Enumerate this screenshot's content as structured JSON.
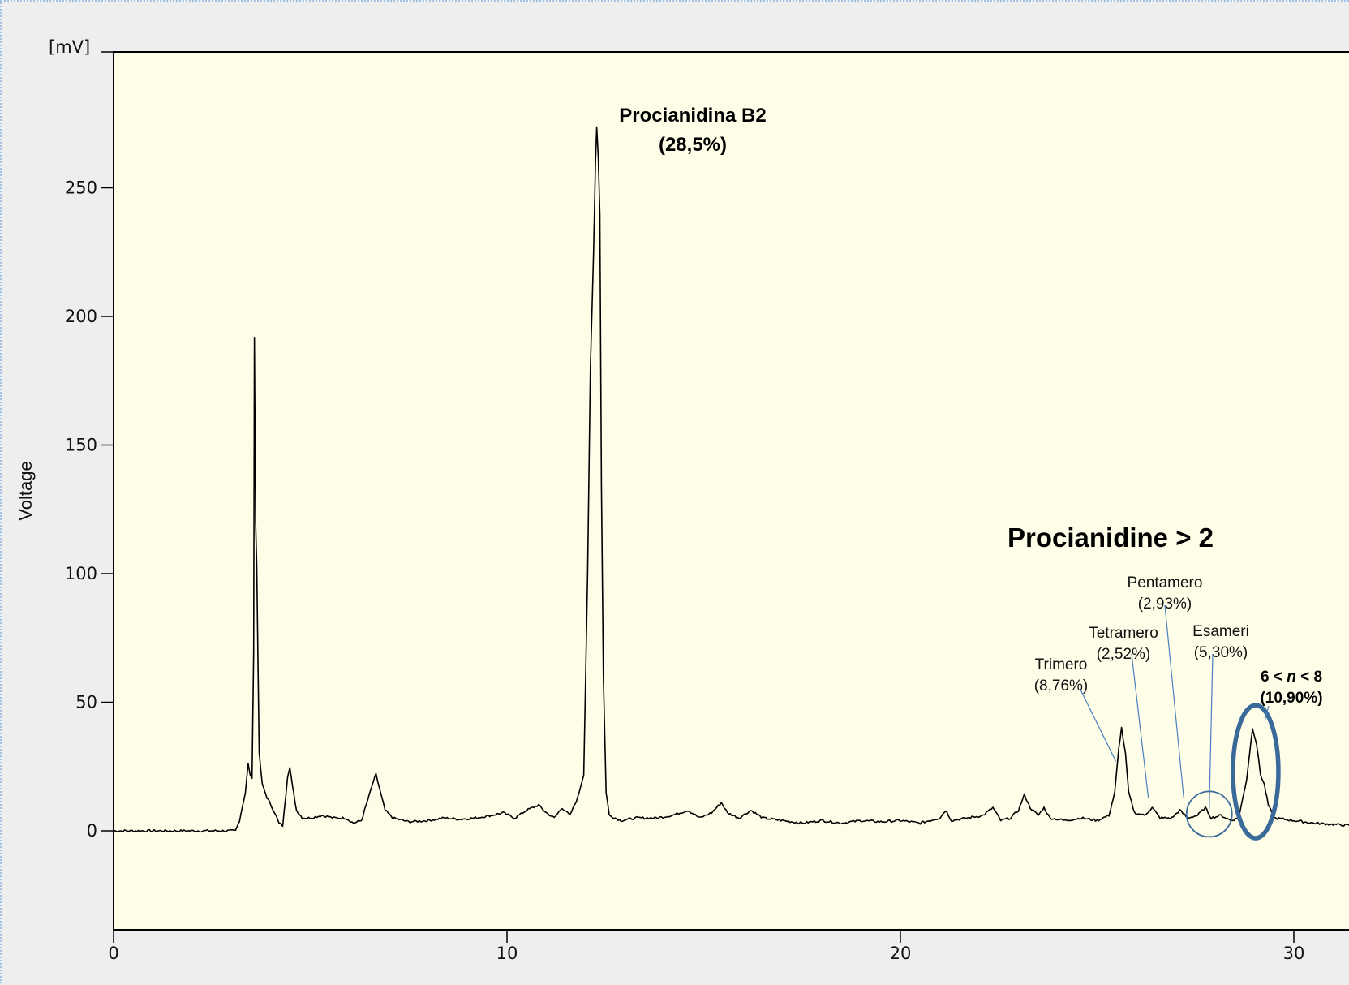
{
  "chart_data": {
    "type": "line",
    "unit_label": "[mV]",
    "ylabel": "Voltage",
    "xlabel": "",
    "xlim": [
      0,
      31.5
    ],
    "ylim": [
      -38,
      303
    ],
    "x_ticks": [
      0,
      10,
      20,
      30
    ],
    "y_ticks": [
      0,
      50,
      100,
      150,
      200,
      250
    ],
    "grid": false,
    "background_color": "#fefee8",
    "line_color": "#000000",
    "series": [
      {
        "values": [
          [
            0,
            0
          ],
          [
            3.1,
            0
          ],
          [
            3.2,
            4
          ],
          [
            3.35,
            15
          ],
          [
            3.42,
            26
          ],
          [
            3.47,
            22
          ],
          [
            3.52,
            20
          ],
          [
            3.56,
            70
          ],
          [
            3.58,
            192
          ],
          [
            3.61,
            120
          ],
          [
            3.64,
            103
          ],
          [
            3.7,
            30
          ],
          [
            3.78,
            18
          ],
          [
            3.9,
            13
          ],
          [
            4.0,
            10
          ],
          [
            4.1,
            7
          ],
          [
            4.2,
            3
          ],
          [
            4.3,
            2
          ],
          [
            4.38,
            14
          ],
          [
            4.42,
            21
          ],
          [
            4.48,
            25
          ],
          [
            4.55,
            17
          ],
          [
            4.65,
            8
          ],
          [
            4.8,
            5
          ],
          [
            5.0,
            5
          ],
          [
            5.3,
            6
          ],
          [
            5.6,
            5
          ],
          [
            5.9,
            5
          ],
          [
            6.1,
            3
          ],
          [
            6.3,
            4
          ],
          [
            6.5,
            14
          ],
          [
            6.6,
            19
          ],
          [
            6.67,
            22
          ],
          [
            6.75,
            17
          ],
          [
            6.9,
            8
          ],
          [
            7.1,
            5
          ],
          [
            7.5,
            3.5
          ],
          [
            8.0,
            4
          ],
          [
            8.4,
            5
          ],
          [
            8.8,
            4.5
          ],
          [
            9.2,
            5
          ],
          [
            9.6,
            6
          ],
          [
            9.9,
            7
          ],
          [
            10.2,
            5
          ],
          [
            10.5,
            8
          ],
          [
            10.8,
            10
          ],
          [
            11.0,
            7
          ],
          [
            11.2,
            5
          ],
          [
            11.4,
            9
          ],
          [
            11.6,
            6
          ],
          [
            11.8,
            13
          ],
          [
            11.95,
            22
          ],
          [
            12.05,
            100
          ],
          [
            12.12,
            180
          ],
          [
            12.2,
            225
          ],
          [
            12.25,
            260
          ],
          [
            12.28,
            274
          ],
          [
            12.32,
            262
          ],
          [
            12.36,
            240
          ],
          [
            12.4,
            135
          ],
          [
            12.45,
            60
          ],
          [
            12.52,
            15
          ],
          [
            12.6,
            6
          ],
          [
            12.9,
            4
          ],
          [
            13.3,
            5
          ],
          [
            13.8,
            5
          ],
          [
            14.2,
            6
          ],
          [
            14.6,
            8
          ],
          [
            14.9,
            5
          ],
          [
            15.2,
            7
          ],
          [
            15.45,
            11
          ],
          [
            15.6,
            7
          ],
          [
            15.9,
            5
          ],
          [
            16.2,
            8
          ],
          [
            16.5,
            5
          ],
          [
            17.0,
            4
          ],
          [
            17.5,
            3
          ],
          [
            18.0,
            4
          ],
          [
            18.5,
            3
          ],
          [
            19.0,
            4
          ],
          [
            19.5,
            3.5
          ],
          [
            20.0,
            4
          ],
          [
            20.5,
            3
          ],
          [
            21.0,
            5
          ],
          [
            21.15,
            8
          ],
          [
            21.3,
            4
          ],
          [
            21.7,
            5
          ],
          [
            22.1,
            6
          ],
          [
            22.35,
            9
          ],
          [
            22.55,
            4
          ],
          [
            22.8,
            5
          ],
          [
            23.0,
            8
          ],
          [
            23.15,
            14
          ],
          [
            23.3,
            9
          ],
          [
            23.5,
            6
          ],
          [
            23.65,
            9
          ],
          [
            23.8,
            5
          ],
          [
            24.2,
            4
          ],
          [
            24.6,
            5
          ],
          [
            25.0,
            4
          ],
          [
            25.3,
            6
          ],
          [
            25.45,
            15
          ],
          [
            25.55,
            32
          ],
          [
            25.62,
            40
          ],
          [
            25.72,
            30
          ],
          [
            25.8,
            15
          ],
          [
            25.95,
            7
          ],
          [
            26.2,
            6
          ],
          [
            26.4,
            9
          ],
          [
            26.6,
            5
          ],
          [
            26.9,
            5
          ],
          [
            27.1,
            8
          ],
          [
            27.3,
            5
          ],
          [
            27.55,
            6
          ],
          [
            27.75,
            9
          ],
          [
            27.9,
            5
          ],
          [
            28.15,
            6
          ],
          [
            28.4,
            4
          ],
          [
            28.6,
            5
          ],
          [
            28.8,
            20
          ],
          [
            28.95,
            40
          ],
          [
            29.05,
            34
          ],
          [
            29.15,
            22
          ],
          [
            29.25,
            18
          ],
          [
            29.35,
            10
          ],
          [
            29.5,
            5
          ],
          [
            30.0,
            4
          ],
          [
            30.5,
            3
          ],
          [
            31.0,
            2.5
          ],
          [
            31.5,
            2
          ]
        ]
      }
    ],
    "annotations": [
      {
        "text": [
          "Procianidina B2",
          "(28,5%)"
        ],
        "style": "bold"
      },
      {
        "text": [
          "Procianidine > 2"
        ],
        "style": "big"
      },
      {
        "text": [
          "Trimero",
          "(8,76%)"
        ],
        "style": "small",
        "x": 25.6,
        "y": 27
      },
      {
        "text": [
          "Tetramero",
          "(2,52%)"
        ],
        "style": "small",
        "x": 26.3,
        "y": 13
      },
      {
        "text": [
          "Pentamero",
          "(2,93%)"
        ],
        "style": "small",
        "x": 27.2,
        "y": 13
      },
      {
        "text": [
          "Esameri",
          "(5,30%)"
        ],
        "style": "small",
        "x": 27.85,
        "y": 18
      },
      {
        "text": [
          "6 < ",
          "n",
          " < 8",
          "(10,90%)"
        ],
        "style": "small-bold",
        "x": 29.1,
        "y": 43
      }
    ],
    "highlights": [
      {
        "shape": "ellipse",
        "cx": 27.85,
        "cy": 6.5,
        "color": "#3a6a9a"
      },
      {
        "shape": "ellipse",
        "cx": 29.03,
        "cy": 23,
        "color": "#3a6a9a"
      }
    ]
  }
}
